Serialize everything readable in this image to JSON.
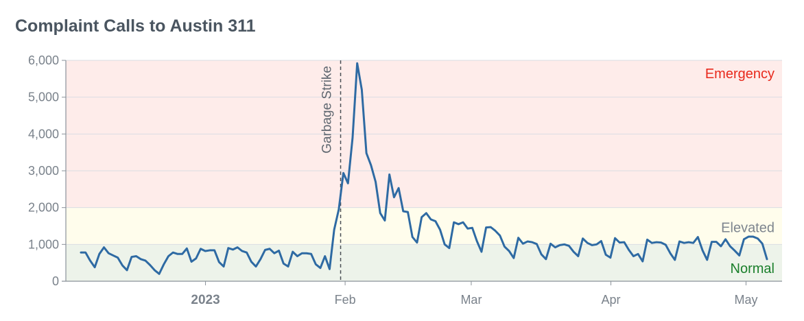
{
  "chart_data": {
    "type": "line",
    "title": "Complaint Calls to Austin 311",
    "xlabel": "",
    "ylabel": "",
    "x_start": "2022-12-01",
    "x_end": "2023-05-09",
    "ylim": [
      0,
      6000
    ],
    "y_ticks": [
      {
        "value": 0,
        "label": "0"
      },
      {
        "value": 1000,
        "label": "1,000"
      },
      {
        "value": 2000,
        "label": "2,000"
      },
      {
        "value": 3000,
        "label": "3,000"
      },
      {
        "value": 4000,
        "label": "4,000"
      },
      {
        "value": 5000,
        "label": "5,000"
      },
      {
        "value": 6000,
        "label": "6,000"
      }
    ],
    "x_ticks": [
      {
        "date": "2023-01-01",
        "label": "2023",
        "bold": true
      },
      {
        "date": "2023-02-01",
        "label": "Feb",
        "bold": false
      },
      {
        "date": "2023-03-01",
        "label": "Mar",
        "bold": false
      },
      {
        "date": "2023-04-01",
        "label": "Apr",
        "bold": false
      },
      {
        "date": "2023-05-01",
        "label": "May",
        "bold": false
      }
    ],
    "bands": [
      {
        "label": "Normal",
        "from": 0,
        "to": 1000,
        "fill": "#edf3ea",
        "label_color": "#1a7f2b"
      },
      {
        "label": "Elevated",
        "from": 1000,
        "to": 2000,
        "fill": "#fffdec",
        "label_color": "#7d858e"
      },
      {
        "label": "Emergency",
        "from": 2000,
        "to": 6000,
        "fill": "#feecea",
        "label_color": "#e8291c"
      }
    ],
    "annotation": {
      "label": "Garbage Strike",
      "date": "2023-01-31"
    },
    "line_color": "#2e6aa3",
    "grid": true,
    "values": [
      780,
      780,
      560,
      380,
      740,
      920,
      760,
      700,
      640,
      430,
      300,
      660,
      680,
      600,
      560,
      440,
      300,
      200,
      460,
      680,
      780,
      740,
      740,
      890,
      530,
      620,
      880,
      820,
      840,
      840,
      520,
      400,
      900,
      860,
      920,
      820,
      780,
      530,
      400,
      600,
      850,
      880,
      760,
      830,
      480,
      400,
      800,
      680,
      760,
      760,
      740,
      460,
      360,
      680,
      330,
      1400,
      1950,
      2940,
      2660,
      3900,
      5920,
      5200,
      3480,
      3150,
      2700,
      1850,
      1650,
      2900,
      2280,
      2530,
      1900,
      1880,
      1200,
      1050,
      1740,
      1850,
      1680,
      1630,
      1400,
      1000,
      900,
      1600,
      1550,
      1600,
      1430,
      1450,
      1090,
      800,
      1460,
      1470,
      1370,
      1240,
      940,
      820,
      630,
      1180,
      1020,
      1080,
      1060,
      1010,
      730,
      600,
      1020,
      920,
      980,
      1000,
      960,
      800,
      680,
      1160,
      1040,
      980,
      1000,
      1090,
      720,
      640,
      1170,
      1050,
      1060,
      850,
      680,
      740,
      540,
      1130,
      1040,
      1060,
      1050,
      990,
      760,
      580,
      1080,
      1040,
      1060,
      1040,
      1200,
      840,
      580,
      1070,
      1070,
      950,
      1140,
      950,
      830,
      700,
      1140,
      1210,
      1210,
      1160,
      1020,
      600
    ]
  }
}
